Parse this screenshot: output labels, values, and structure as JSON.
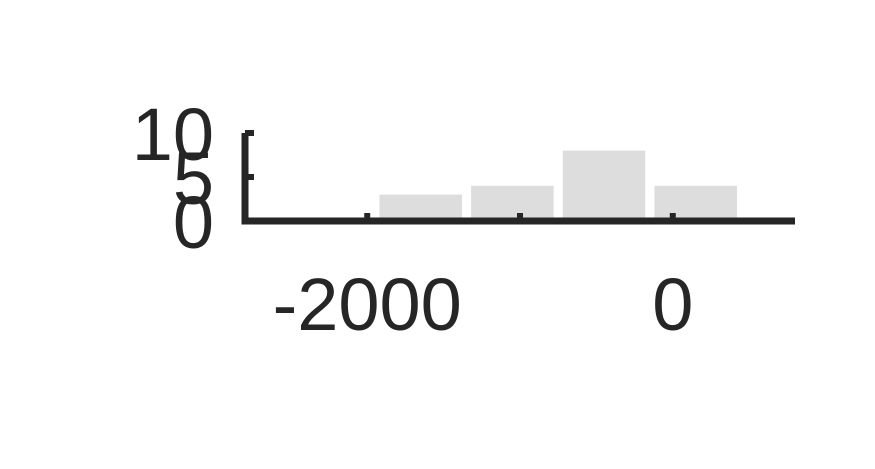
{
  "chart_data": {
    "type": "bar",
    "x": [
      -1650,
      -1050,
      -450,
      150
    ],
    "values": [
      3,
      4,
      8,
      4
    ],
    "xlim": [
      -2800,
      800
    ],
    "ylim": [
      0,
      10
    ],
    "xticks": [
      -2000,
      -1000,
      0
    ],
    "xtick_labels": [
      "-2000",
      "",
      "0"
    ],
    "yticks": [
      0,
      5,
      10
    ],
    "ytick_labels": [
      "0",
      "5",
      "10"
    ],
    "title": "",
    "xlabel": "",
    "ylabel": "",
    "grid": false,
    "colors": {
      "bar": "#dddddd",
      "axis": "#262626",
      "text": "#262626"
    }
  }
}
